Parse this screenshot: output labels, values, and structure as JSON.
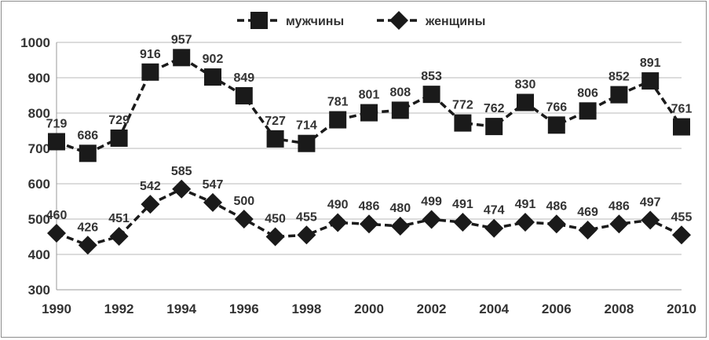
{
  "chart_data": {
    "type": "line",
    "title": "",
    "xlabel": "",
    "ylabel": "",
    "x": [
      1990,
      1991,
      1992,
      1993,
      1994,
      1995,
      1996,
      1997,
      1998,
      1999,
      2000,
      2001,
      2002,
      2003,
      2004,
      2005,
      2006,
      2007,
      2008,
      2009,
      2010
    ],
    "x_tick_labels": [
      "1990",
      "1992",
      "1994",
      "1996",
      "1998",
      "2000",
      "2002",
      "2004",
      "2006",
      "2008",
      "2010"
    ],
    "ylim": [
      300,
      1000
    ],
    "y_tick_labels": [
      "300",
      "400",
      "500",
      "600",
      "700",
      "800",
      "900",
      "1000"
    ],
    "grid": "horizontal",
    "legend_position": "top-center",
    "series": [
      {
        "name": "мужчины",
        "marker": "square",
        "line_style": "dashed",
        "color": "#1a1a1a",
        "values": [
          719,
          686,
          729,
          916,
          957,
          902,
          849,
          727,
          714,
          781,
          801,
          808,
          853,
          772,
          762,
          830,
          766,
          806,
          852,
          891,
          761
        ]
      },
      {
        "name": "женщины",
        "marker": "diamond",
        "line_style": "dashed",
        "color": "#1a1a1a",
        "values": [
          460,
          426,
          451,
          542,
          585,
          547,
          500,
          450,
          455,
          490,
          486,
          480,
          499,
          491,
          474,
          491,
          486,
          469,
          486,
          497,
          455
        ]
      }
    ]
  }
}
